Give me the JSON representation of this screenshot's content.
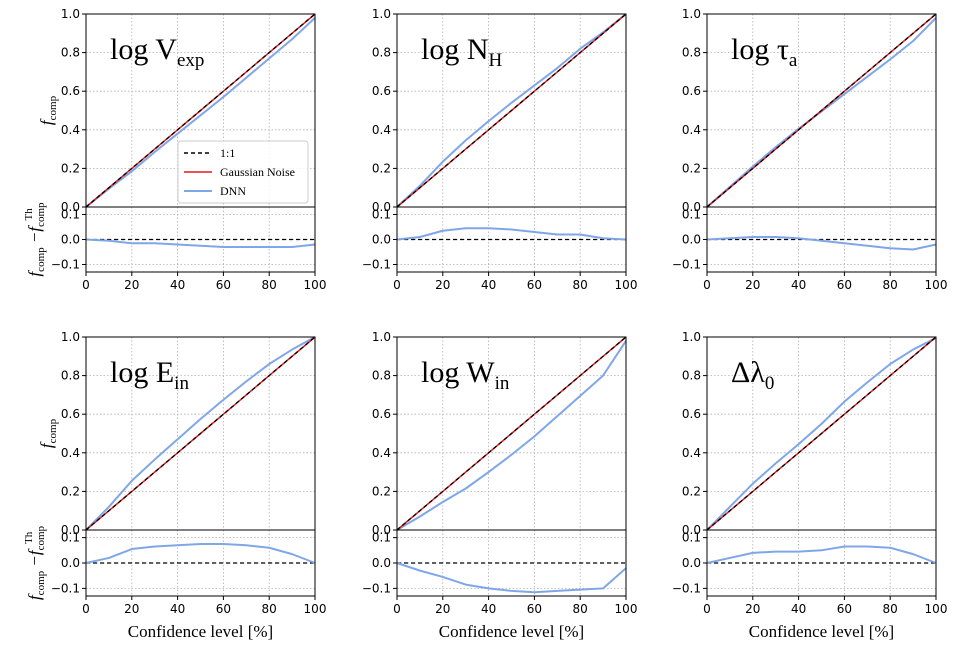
{
  "figure": {
    "xlabel": "Confidence level [%]",
    "ylabel_main": {
      "base": "f",
      "sub": "comp"
    },
    "ylabel_residual": {
      "part1_base": "f",
      "part1_sub": "comp",
      "minus": "−",
      "part2_base": "f",
      "part2_sub": "comp",
      "part2_sup": "Th"
    }
  },
  "legend": {
    "items": [
      {
        "label": "1:1",
        "color": "#000000",
        "style": "dashed"
      },
      {
        "label": "Gaussian Noise",
        "color": "#e41a1c",
        "style": "solid"
      },
      {
        "label": "DNN",
        "color": "#7fa7e8",
        "style": "solid"
      }
    ]
  },
  "colors": {
    "one_to_one": "#000000",
    "gaussian": "#e41a1c",
    "dnn": "#7fa7e8",
    "grid": "#b0b0b0"
  },
  "axis_ticks": {
    "x": [
      "0",
      "20",
      "40",
      "60",
      "80",
      "100"
    ],
    "y_main": [
      "0.0",
      "0.2",
      "0.4",
      "0.6",
      "0.8",
      "1.0"
    ],
    "y_residual": [
      "−0.1",
      "0.0",
      "0.1"
    ]
  },
  "chart_data": [
    {
      "type": "line",
      "title_base": "log V",
      "title_sub": "exp",
      "xlim": [
        0,
        100
      ],
      "ylim": [
        0,
        1
      ],
      "residual_ylim": [
        -0.13,
        0.13
      ],
      "x": [
        0,
        10,
        20,
        30,
        40,
        50,
        60,
        70,
        80,
        90,
        100
      ],
      "series": [
        {
          "name": "1:1",
          "values": [
            0,
            0.1,
            0.2,
            0.3,
            0.4,
            0.5,
            0.6,
            0.7,
            0.8,
            0.9,
            1.0
          ]
        },
        {
          "name": "Gaussian Noise",
          "values": [
            0,
            0.1,
            0.2,
            0.3,
            0.4,
            0.5,
            0.6,
            0.7,
            0.8,
            0.9,
            1.0
          ]
        },
        {
          "name": "DNN",
          "values": [
            0,
            0.095,
            0.185,
            0.285,
            0.38,
            0.475,
            0.57,
            0.67,
            0.77,
            0.87,
            0.98
          ]
        }
      ],
      "residual": [
        0,
        -0.005,
        -0.015,
        -0.015,
        -0.02,
        -0.025,
        -0.03,
        -0.03,
        -0.03,
        -0.03,
        -0.02
      ]
    },
    {
      "type": "line",
      "title_base": "log N",
      "title_sub": "H",
      "xlim": [
        0,
        100
      ],
      "ylim": [
        0,
        1
      ],
      "residual_ylim": [
        -0.13,
        0.13
      ],
      "x": [
        0,
        10,
        20,
        30,
        40,
        50,
        60,
        70,
        80,
        90,
        100
      ],
      "series": [
        {
          "name": "1:1",
          "values": [
            0,
            0.1,
            0.2,
            0.3,
            0.4,
            0.5,
            0.6,
            0.7,
            0.8,
            0.9,
            1.0
          ]
        },
        {
          "name": "Gaussian Noise",
          "values": [
            0,
            0.1,
            0.2,
            0.3,
            0.4,
            0.5,
            0.6,
            0.7,
            0.8,
            0.9,
            1.0
          ]
        },
        {
          "name": "DNN",
          "values": [
            0,
            0.11,
            0.235,
            0.345,
            0.445,
            0.54,
            0.63,
            0.72,
            0.82,
            0.905,
            1.0
          ]
        }
      ],
      "residual": [
        0,
        0.01,
        0.035,
        0.045,
        0.045,
        0.04,
        0.03,
        0.02,
        0.02,
        0.005,
        0
      ]
    },
    {
      "type": "line",
      "title_base": "log τ",
      "title_sub": "a",
      "xlim": [
        0,
        100
      ],
      "ylim": [
        0,
        1
      ],
      "residual_ylim": [
        -0.13,
        0.13
      ],
      "x": [
        0,
        10,
        20,
        30,
        40,
        50,
        60,
        70,
        80,
        90,
        100
      ],
      "series": [
        {
          "name": "1:1",
          "values": [
            0,
            0.1,
            0.2,
            0.3,
            0.4,
            0.5,
            0.6,
            0.7,
            0.8,
            0.9,
            1.0
          ]
        },
        {
          "name": "Gaussian Noise",
          "values": [
            0,
            0.1,
            0.2,
            0.3,
            0.4,
            0.5,
            0.6,
            0.7,
            0.8,
            0.9,
            1.0
          ]
        },
        {
          "name": "DNN",
          "values": [
            0,
            0.105,
            0.21,
            0.31,
            0.405,
            0.495,
            0.585,
            0.675,
            0.765,
            0.86,
            0.98
          ]
        }
      ],
      "residual": [
        0,
        0.005,
        0.01,
        0.01,
        0.005,
        -0.005,
        -0.015,
        -0.025,
        -0.035,
        -0.04,
        -0.02
      ]
    },
    {
      "type": "line",
      "title_base": "log E",
      "title_sub": "in",
      "xlim": [
        0,
        100
      ],
      "ylim": [
        0,
        1
      ],
      "residual_ylim": [
        -0.13,
        0.13
      ],
      "x": [
        0,
        10,
        20,
        30,
        40,
        50,
        60,
        70,
        80,
        90,
        100
      ],
      "series": [
        {
          "name": "1:1",
          "values": [
            0,
            0.1,
            0.2,
            0.3,
            0.4,
            0.5,
            0.6,
            0.7,
            0.8,
            0.9,
            1.0
          ]
        },
        {
          "name": "Gaussian Noise",
          "values": [
            0,
            0.1,
            0.2,
            0.3,
            0.4,
            0.5,
            0.6,
            0.7,
            0.8,
            0.9,
            1.0
          ]
        },
        {
          "name": "DNN",
          "values": [
            0,
            0.12,
            0.255,
            0.365,
            0.47,
            0.575,
            0.675,
            0.77,
            0.86,
            0.935,
            1.0
          ]
        }
      ],
      "residual": [
        0,
        0.02,
        0.055,
        0.065,
        0.07,
        0.075,
        0.075,
        0.07,
        0.06,
        0.035,
        0
      ]
    },
    {
      "type": "line",
      "title_base": "log W",
      "title_sub": "in",
      "xlim": [
        0,
        100
      ],
      "ylim": [
        0,
        1
      ],
      "residual_ylim": [
        -0.13,
        0.13
      ],
      "x": [
        0,
        10,
        20,
        30,
        40,
        50,
        60,
        70,
        80,
        90,
        100
      ],
      "series": [
        {
          "name": "1:1",
          "values": [
            0,
            0.1,
            0.2,
            0.3,
            0.4,
            0.5,
            0.6,
            0.7,
            0.8,
            0.9,
            1.0
          ]
        },
        {
          "name": "Gaussian Noise",
          "values": [
            0,
            0.1,
            0.2,
            0.3,
            0.4,
            0.5,
            0.6,
            0.7,
            0.8,
            0.9,
            1.0
          ]
        },
        {
          "name": "DNN",
          "values": [
            0,
            0.07,
            0.145,
            0.215,
            0.3,
            0.39,
            0.485,
            0.59,
            0.695,
            0.8,
            0.98
          ]
        }
      ],
      "residual": [
        0,
        -0.03,
        -0.055,
        -0.085,
        -0.1,
        -0.11,
        -0.115,
        -0.11,
        -0.105,
        -0.1,
        -0.02
      ]
    },
    {
      "type": "line",
      "title_base": "Δλ",
      "title_sub": "0",
      "xlim": [
        0,
        100
      ],
      "ylim": [
        0,
        1
      ],
      "residual_ylim": [
        -0.13,
        0.13
      ],
      "x": [
        0,
        10,
        20,
        30,
        40,
        50,
        60,
        70,
        80,
        90,
        100
      ],
      "series": [
        {
          "name": "1:1",
          "values": [
            0,
            0.1,
            0.2,
            0.3,
            0.4,
            0.5,
            0.6,
            0.7,
            0.8,
            0.9,
            1.0
          ]
        },
        {
          "name": "Gaussian Noise",
          "values": [
            0,
            0.1,
            0.2,
            0.3,
            0.4,
            0.5,
            0.6,
            0.7,
            0.8,
            0.9,
            1.0
          ]
        },
        {
          "name": "DNN",
          "values": [
            0,
            0.12,
            0.24,
            0.345,
            0.445,
            0.55,
            0.665,
            0.765,
            0.86,
            0.935,
            0.995
          ]
        }
      ],
      "residual": [
        0,
        0.02,
        0.04,
        0.045,
        0.045,
        0.05,
        0.065,
        0.065,
        0.06,
        0.035,
        0
      ]
    }
  ]
}
